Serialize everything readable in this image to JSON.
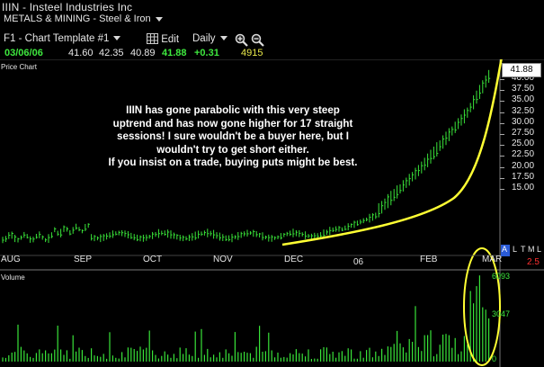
{
  "header": {
    "title": "IIIN - Insteel Industries Inc",
    "sector": "METALS & MINING - Steel & Iron"
  },
  "toolbar": {
    "template": "F1 - Chart Template #1",
    "edit_label": "Edit",
    "interval": "Daily",
    "zoom_in_icon": "zoom-in-icon",
    "zoom_out_icon": "zoom-out-icon"
  },
  "quote": {
    "date": "03/06/06",
    "open": "41.60",
    "high": "42.35",
    "low": "40.89",
    "close": "41.88",
    "change": "+0.31",
    "volume": "4915"
  },
  "price_pane": {
    "label": "Price Chart",
    "last_price": "41.88",
    "axis_ticks": [
      "40.00",
      "37.50",
      "35.00",
      "32.50",
      "30.00",
      "27.50",
      "25.00",
      "22.50",
      "20.00",
      "17.50",
      "15.00"
    ],
    "annotation": [
      "IIIN has gone parabolic with this very steep",
      "uptrend and has now gone higher for 17 straight",
      "sessions!  I sure wouldn't be a buyer here, but I",
      "wouldn't try to get short either.",
      "If you insist on a trade, buying puts might be best."
    ]
  },
  "time_axis": {
    "labels": [
      "AUG",
      "SEP",
      "OCT",
      "NOV",
      "DEC",
      "06",
      "FEB",
      "MAR"
    ],
    "controls": [
      "A",
      "L",
      "T",
      "M",
      "L"
    ],
    "scale_value": "2.5"
  },
  "volume_pane": {
    "label": "Volume",
    "axis_ticks": [
      "6093",
      "3047",
      "0"
    ]
  },
  "colors": {
    "background": "#000000",
    "candles": "#39e339",
    "annotation_curve": "#ffff33",
    "quote_green": "#3ee83e",
    "accent_red": "#ff3030",
    "control_blue": "#2a5bd7"
  }
}
